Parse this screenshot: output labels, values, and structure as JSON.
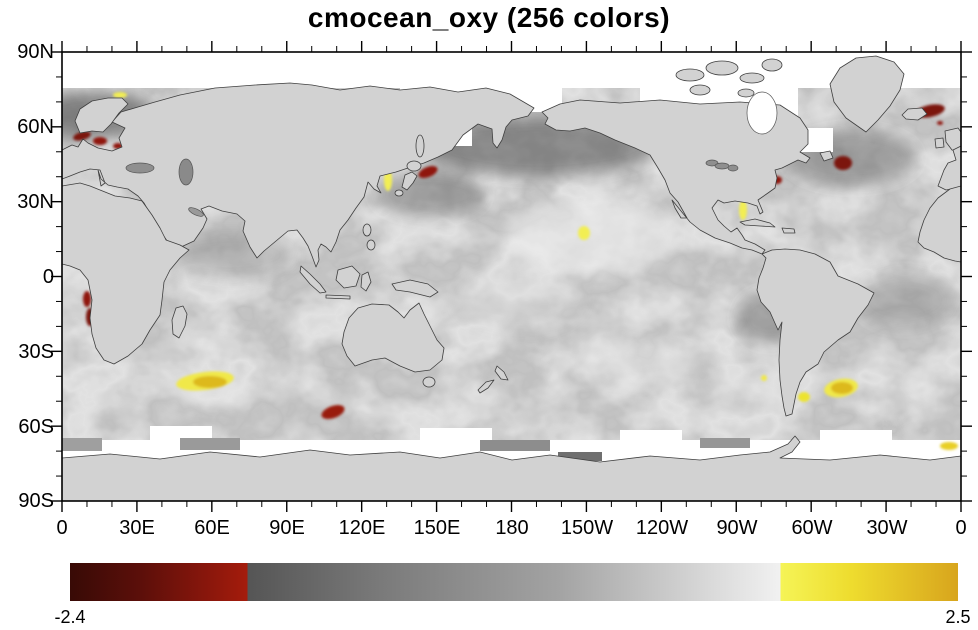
{
  "title": "cmocean_oxy (256 colors)",
  "axes": {
    "lat_labels": [
      "90N",
      "60N",
      "30N",
      "0",
      "30S",
      "60S",
      "90S"
    ],
    "lon_labels": [
      "0",
      "30E",
      "60E",
      "90E",
      "120E",
      "150E",
      "180",
      "150W",
      "120W",
      "90W",
      "60W",
      "30W",
      "0"
    ]
  },
  "colorbar": {
    "min_label": "-2.4",
    "max_label": "2.5",
    "segment_fractions": [
      0.2,
      0.6,
      0.2
    ],
    "red_segment_colors": [
      "#380a06",
      "#a51c0c"
    ],
    "gray_segment_colors": [
      "#555555",
      "#f1f1f1"
    ],
    "yellow_segment_colors": [
      "#f5f457",
      "#d8a51d"
    ]
  },
  "map": {
    "land_color": "#d2d2d2",
    "coastline_color": "#3f3f3f",
    "missing_data_color": "#ffffff",
    "dark_red_patch_color": "#8f160d",
    "yellow_patch_color": "#e8cf28"
  },
  "chart_data": {
    "type": "heatmap",
    "title": "cmocean_oxy (256 colors)",
    "colormap": "cmocean oxy",
    "n_colors": 256,
    "value_min": -2.4,
    "value_max": 2.5,
    "colorbar_labels": [
      "-2.4",
      "2.5"
    ],
    "projection": "cylindrical equidistant world map, longitude 0E through 180 to 0W left-to-right, latitude 90N (top) to 90S (bottom)",
    "x_tick_labels": [
      "0",
      "30E",
      "60E",
      "90E",
      "120E",
      "150E",
      "180",
      "150W",
      "120W",
      "90W",
      "60W",
      "30W",
      "0"
    ],
    "y_tick_labels": [
      "90N",
      "60N",
      "30N",
      "0",
      "30S",
      "60S",
      "90S"
    ],
    "major_tick_interval_deg": 30,
    "minor_tick_interval_deg": 10,
    "colorbar_segments": [
      {
        "fraction_range": [
          0.0,
          0.2
        ],
        "colors": [
          "#380a06",
          "#a51c0c"
        ],
        "meaning": "strongly negative values, dark red"
      },
      {
        "fraction_range": [
          0.2,
          0.8
        ],
        "colors": [
          "#555555",
          "#f1f1f1"
        ],
        "meaning": "near-zero values, dark-to-light gray"
      },
      {
        "fraction_range": [
          0.8,
          1.0
        ],
        "colors": [
          "#f5f457",
          "#d8a51d"
        ],
        "meaning": "strongly positive values, yellow to goldenrod"
      }
    ],
    "field_description": "Ocean anomaly field is mottled mid-gray (values near 0); continents masked light gray; Arctic, Sea of Okhotsk, Hudson Bay and a Southern Ocean band (~63S-68S) are white (missing data)",
    "negative_extremes_dark_red": [
      {
        "location": "Skagerrak / Baltic off southern Norway",
        "approx_lon": "8E-20E",
        "approx_lat": "57N"
      },
      {
        "location": "Norwegian Sea NE of Iceland",
        "approx_lon": "12W",
        "approx_lat": "68N"
      },
      {
        "location": "south of Newfoundland",
        "approx_lon": "47W",
        "approx_lat": "46N"
      },
      {
        "location": "US east coast near Cape Hatteras",
        "approx_lon": "74W",
        "approx_lat": "38N"
      },
      {
        "location": "east of Hokkaido, Japan",
        "approx_lon": "147E",
        "approx_lat": "42N"
      },
      {
        "location": "Angola / Benguela coast",
        "approx_lon": "11E",
        "approx_lat": "8S-16S"
      },
      {
        "location": "Southern Ocean south of Australia",
        "approx_lon": "108E",
        "approx_lat": "54S"
      }
    ],
    "positive_extremes_yellow": [
      {
        "location": "SW Indian Ocean southeast of Africa",
        "approx_lon": "55E",
        "approx_lat": "41S"
      },
      {
        "location": "Argentine Basin offshore",
        "approx_lon": "48W",
        "approx_lat": "44S"
      },
      {
        "location": "Sea of Japan east of Korea",
        "approx_lon": "130E",
        "approx_lat": "37N"
      },
      {
        "location": "eastern Gulf of Mexico",
        "approx_lon": "88W",
        "approx_lat": "27N"
      },
      {
        "location": "central Pacific SE of Hawaii",
        "approx_lon": "152W",
        "approx_lat": "18N"
      },
      {
        "location": "off northern Norway",
        "approx_lon": "20E",
        "approx_lat": "72N"
      },
      {
        "location": "near Antarctic coast at Greenwich meridian",
        "approx_lon": "5W",
        "approx_lat": "67S"
      }
    ]
  }
}
